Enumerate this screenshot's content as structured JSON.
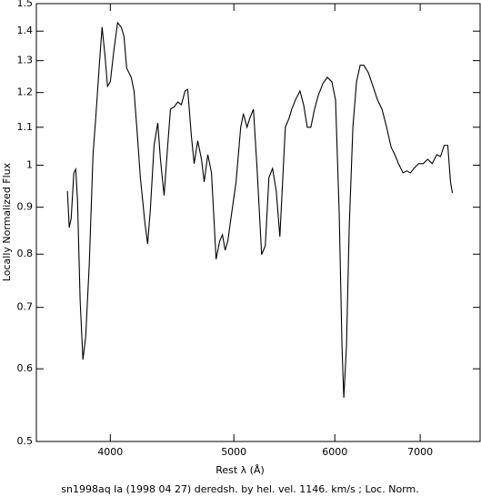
{
  "chart_data": {
    "type": "line",
    "title": "sn1998aq Ia (1998 04 27) deredsh. by hel. vel.  1146. km/s ;  Loc. Norm.",
    "x_label": "Rest λ (Å)",
    "y_label": "Locally Normalized Flux",
    "x": [
      3702,
      3714,
      3727,
      3745,
      3758,
      3770,
      3788,
      3807,
      3826,
      3851,
      3877,
      3896,
      3922,
      3941,
      3961,
      3980,
      4000,
      4026,
      4053,
      4080,
      4100,
      4120,
      4154,
      4175,
      4196,
      4223,
      4258,
      4279,
      4300,
      4329,
      4358,
      4379,
      4408,
      4437,
      4459,
      4488,
      4518,
      4548,
      4578,
      4600,
      4631,
      4654,
      4684,
      4716,
      4739,
      4770,
      4802,
      4842,
      4874,
      4898,
      4922,
      4946,
      4979,
      5020,
      5062,
      5087,
      5120,
      5146,
      5180,
      5214,
      5257,
      5292,
      5327,
      5362,
      5398,
      5433,
      5460,
      5487,
      5524,
      5551,
      5588,
      5634,
      5671,
      5709,
      5746,
      5784,
      5823,
      5871,
      5919,
      5968,
      6008,
      6048,
      6078,
      6098,
      6128,
      6158,
      6199,
      6240,
      6281,
      6323,
      6375,
      6428,
      6481,
      6534,
      6588,
      6643,
      6687,
      6731,
      6787,
      6832,
      6877,
      6922,
      6980,
      7038,
      7096,
      7154,
      7214,
      7262,
      7310,
      7358,
      7394,
      7419
    ],
    "values": [
      0.937,
      0.855,
      0.875,
      0.981,
      0.99,
      0.916,
      0.712,
      0.614,
      0.65,
      0.781,
      1.027,
      1.125,
      1.29,
      1.414,
      1.32,
      1.219,
      1.233,
      1.335,
      1.43,
      1.414,
      1.382,
      1.276,
      1.247,
      1.205,
      1.1,
      0.97,
      0.865,
      0.821,
      0.895,
      1.051,
      1.112,
      1.015,
      0.927,
      1.051,
      1.151,
      1.157,
      1.172,
      1.164,
      1.205,
      1.21,
      1.075,
      1.004,
      1.063,
      1.015,
      0.959,
      1.027,
      0.981,
      0.79,
      0.827,
      0.84,
      0.808,
      0.827,
      0.885,
      0.959,
      1.1,
      1.138,
      1.1,
      1.125,
      1.151,
      0.992,
      0.799,
      0.817,
      0.97,
      0.992,
      0.937,
      0.836,
      0.959,
      1.1,
      1.125,
      1.151,
      1.178,
      1.205,
      1.164,
      1.1,
      1.1,
      1.151,
      1.191,
      1.227,
      1.247,
      1.233,
      1.178,
      0.885,
      0.636,
      0.558,
      0.636,
      0.855,
      1.1,
      1.233,
      1.285,
      1.285,
      1.261,
      1.219,
      1.178,
      1.151,
      1.1,
      1.046,
      1.027,
      1.004,
      0.981,
      0.986,
      0.981,
      0.992,
      1.004,
      1.004,
      1.015,
      1.004,
      1.027,
      1.022,
      1.051,
      1.051,
      0.959,
      0.933
    ],
    "color": "#000000",
    "xlim": [
      3500,
      7800
    ],
    "ylim": [
      0.5,
      1.5
    ],
    "xticks": [
      4000,
      5000,
      6000,
      7000
    ],
    "yticks": [
      0.5,
      0.6,
      0.7,
      0.8,
      0.9,
      1,
      1.1,
      1.2,
      1.3,
      1.4,
      1.5
    ],
    "x_log": true,
    "y_log": true
  }
}
